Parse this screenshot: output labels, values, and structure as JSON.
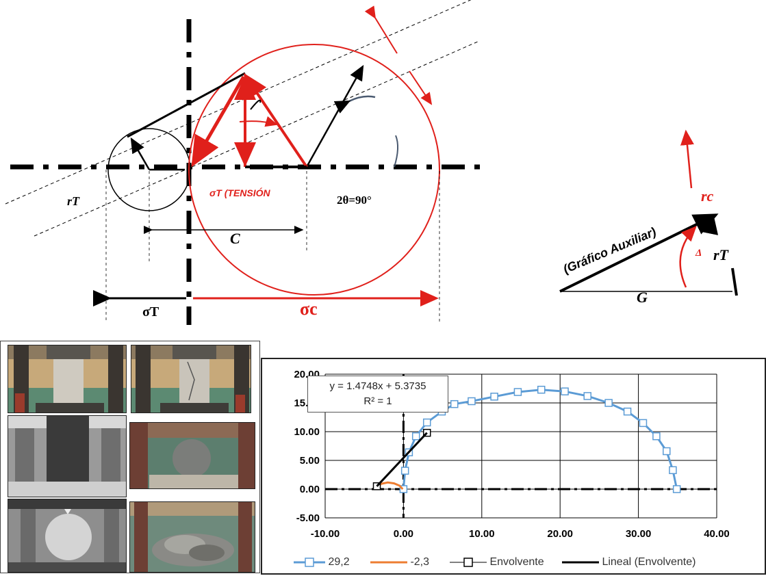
{
  "diagram": {
    "label_tension": "σT (TENSIÓN",
    "label_2theta": "2θ=90°",
    "label_rt": "rT",
    "label_c": "C",
    "label_sigma_t": "σT",
    "label_sigma_c": "σc"
  },
  "aux": {
    "title": "(Gráfico Auxiliar)",
    "label_rc": "rc",
    "label_rt": "rT",
    "label_delta": "Δ",
    "label_g": "G"
  },
  "equation": {
    "line1": "y = 1.4748x + 5.3735",
    "line2": "R² = 1"
  },
  "colors": {
    "series1": "#5b9bd5",
    "series2": "#ed7d31",
    "series3": "#808080",
    "series4": "#000000",
    "red": "#e0201b"
  },
  "chart_data": {
    "type": "scatter",
    "xlim": [
      -10,
      40
    ],
    "ylim": [
      -5,
      20
    ],
    "x_ticks": [
      "-10.00",
      "0.00",
      "10.00",
      "20.00",
      "30.00",
      "40.00"
    ],
    "y_ticks": [
      "20.00",
      "15.00",
      "10.00",
      "5.00",
      "0.00",
      "-5.00"
    ],
    "grid": true,
    "legend_position": "bottom",
    "series": [
      {
        "name": "29,2",
        "color": "#5b9bd5",
        "marker": "square-open",
        "points": [
          [
            0,
            0
          ],
          [
            0.2,
            3.2
          ],
          [
            0.7,
            6.4
          ],
          [
            1.6,
            9.2
          ],
          [
            3.0,
            11.6
          ],
          [
            4.9,
            13.5
          ],
          [
            6.5,
            14.8
          ],
          [
            8.7,
            15.3
          ],
          [
            11.6,
            16.1
          ],
          [
            14.6,
            16.9
          ],
          [
            17.6,
            17.3
          ],
          [
            20.6,
            17.0
          ],
          [
            23.5,
            16.2
          ],
          [
            26.2,
            15.0
          ],
          [
            28.6,
            13.5
          ],
          [
            30.6,
            11.5
          ],
          [
            32.3,
            9.2
          ],
          [
            33.6,
            6.6
          ],
          [
            34.4,
            3.3
          ],
          [
            34.9,
            0.0
          ]
        ]
      },
      {
        "name": "-2,3",
        "color": "#ed7d31",
        "marker": "dash",
        "points": [
          [
            -3.3,
            0
          ],
          [
            -2.9,
            0.9
          ],
          [
            -2.0,
            1.15
          ],
          [
            -1.2,
            1.0
          ],
          [
            -0.5,
            0.6
          ],
          [
            -0.1,
            0
          ]
        ]
      },
      {
        "name": "Envolvente",
        "color": "#808080",
        "marker": "square-open-black",
        "points": [
          [
            -3.4,
            0.5
          ],
          [
            3.0,
            9.8
          ]
        ]
      },
      {
        "name": "Lineal (Envolvente)",
        "color": "#000000",
        "marker": "none",
        "points": [
          [
            -3.4,
            0.5
          ],
          [
            3.0,
            9.8
          ]
        ]
      }
    ]
  }
}
